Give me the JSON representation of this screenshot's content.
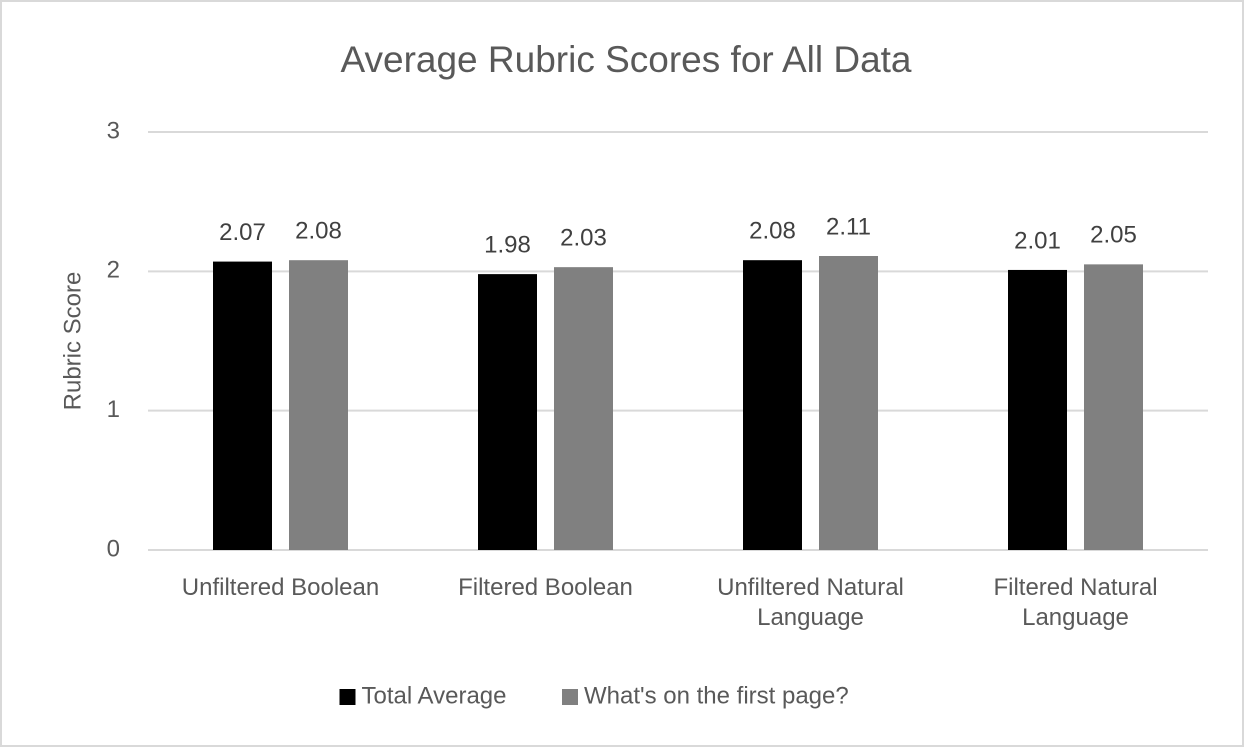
{
  "chart_data": {
    "type": "bar",
    "title": "Average Rubric Scores for All Data",
    "y_label": "Rubric Score",
    "categories": [
      "Unfiltered Boolean",
      "Filtered Boolean",
      "Unfiltered Natural Language",
      "Filtered Natural Language"
    ],
    "series": [
      {
        "name": "Total Average",
        "color": "#000000",
        "values": [
          2.07,
          1.98,
          2.08,
          2.01
        ]
      },
      {
        "name": "What's on the first page?",
        "color": "#808080",
        "values": [
          2.08,
          2.03,
          2.11,
          2.05
        ]
      }
    ],
    "ylim": [
      0,
      3
    ],
    "yticks": [
      0,
      1,
      2,
      3
    ],
    "grid": true,
    "legend": "bottom"
  }
}
